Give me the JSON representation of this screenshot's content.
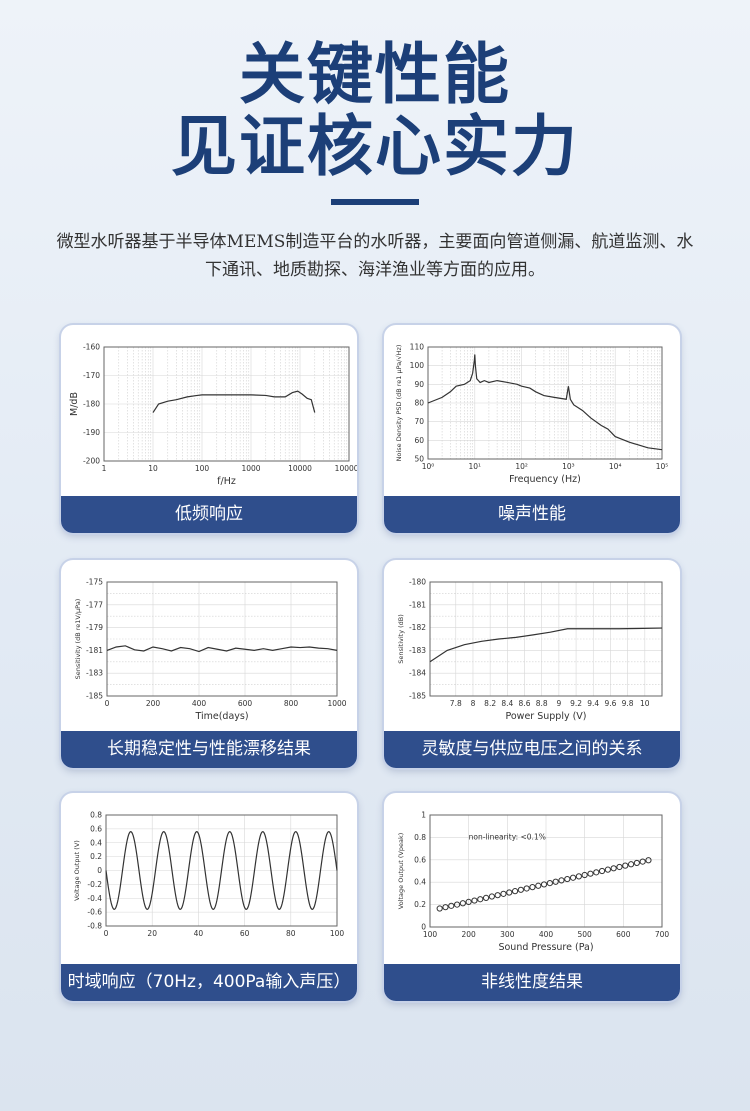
{
  "header": {
    "title_line1": "关键性能",
    "title_line2": "见证核心实力",
    "description": "微型水听器基于半导体MEMS制造平台的水听器，主要面向管道侧漏、航道监测、水下通讯、地质勘探、海洋渔业等方面的应用。"
  },
  "colors": {
    "title": "#1c3f78",
    "label_bg": "#2f4e8c",
    "curve": "#333333"
  },
  "cards": {
    "c1": {
      "label": "低频响应"
    },
    "c2": {
      "label": "噪声性能"
    },
    "c3": {
      "label": "长期稳定性与性能漂移结果"
    },
    "c4": {
      "label": "灵敏度与供应电压之间的关系"
    },
    "c5": {
      "label": "时域响应（70Hz，400Pa输入声压）"
    },
    "c6": {
      "label": "非线性度结果"
    }
  },
  "chart_data": [
    {
      "id": "c1",
      "type": "line",
      "xscale": "log",
      "xlabel": "f/Hz",
      "ylabel": "M/dB",
      "xlim": [
        1,
        100000
      ],
      "ylim": [
        -200,
        -160
      ],
      "xticks": [
        1,
        10,
        100,
        1000,
        10000,
        100000
      ],
      "xtick_labels": [
        "1",
        "10",
        "100",
        "1000",
        "10000",
        "100000"
      ],
      "yticks": [
        -160,
        -170,
        -180,
        -190,
        -200
      ],
      "grid": true,
      "series": [
        {
          "x": [
            10,
            13,
            20,
            30,
            50,
            80,
            100,
            200,
            500,
            1000,
            2000,
            3000,
            5000,
            7000,
            9000,
            11000,
            14000,
            17000,
            20000
          ],
          "y": [
            -183,
            -180,
            -179,
            -178.5,
            -177.5,
            -177,
            -176.8,
            -176.8,
            -176.8,
            -176.8,
            -177,
            -177.5,
            -177.5,
            -176,
            -175.5,
            -176.5,
            -178,
            -178.5,
            -183
          ]
        }
      ]
    },
    {
      "id": "c2",
      "type": "line",
      "xscale": "log",
      "xlabel": "Frequency (Hz)",
      "ylabel": "Noise Density PSD (dB re1 μPa/√Hz)",
      "xlim": [
        1,
        100000
      ],
      "ylim": [
        50,
        110
      ],
      "xticks": [
        1,
        10,
        100,
        1000,
        10000,
        100000
      ],
      "xtick_labels": [
        "10⁰",
        "10¹",
        "10²",
        "10³",
        "10⁴",
        "10⁵"
      ],
      "yticks": [
        110,
        100,
        90,
        80,
        70,
        60,
        50
      ],
      "grid": true,
      "series": [
        {
          "x": [
            1,
            2,
            3,
            4,
            6,
            8,
            9,
            9.8,
            10,
            10.3,
            11,
            13,
            16,
            20,
            30,
            50,
            80,
            100,
            150,
            200,
            300,
            500,
            900,
            1000,
            1100,
            1300,
            2000,
            3000,
            5000,
            7000,
            10000,
            20000,
            50000,
            100000
          ],
          "y": [
            80,
            83,
            86,
            89,
            90,
            92,
            96,
            103,
            106,
            100,
            93,
            91,
            92,
            91,
            92,
            91,
            90,
            89,
            88,
            86,
            84,
            83,
            82,
            89,
            82,
            79,
            76,
            72,
            68,
            66,
            62,
            59,
            56,
            55
          ]
        }
      ]
    },
    {
      "id": "c3",
      "type": "line",
      "xlabel": "Time(days)",
      "ylabel": "Sensitivity (dB re1V/μPa)",
      "xlim": [
        0,
        1000
      ],
      "ylim": [
        -185,
        -175
      ],
      "xticks": [
        0,
        200,
        400,
        600,
        800,
        1000
      ],
      "yticks": [
        -175,
        -177,
        -179,
        -181,
        -183,
        -185
      ],
      "grid": true,
      "series": [
        {
          "x": [
            0,
            40,
            80,
            120,
            160,
            200,
            240,
            280,
            320,
            360,
            400,
            440,
            480,
            520,
            560,
            600,
            640,
            680,
            720,
            760,
            800,
            840,
            880,
            920,
            960,
            1000
          ],
          "y": [
            -181,
            -180.7,
            -180.6,
            -180.95,
            -181.05,
            -180.7,
            -180.85,
            -181.05,
            -180.75,
            -180.85,
            -181.1,
            -180.75,
            -180.9,
            -181.05,
            -180.8,
            -180.9,
            -181,
            -180.85,
            -181,
            -180.85,
            -180.7,
            -180.75,
            -180.7,
            -180.8,
            -180.85,
            -181
          ]
        }
      ]
    },
    {
      "id": "c4",
      "type": "line",
      "xlabel": "Power Supply (V)",
      "ylabel": "Sensitivity (dB)",
      "xlim": [
        7.5,
        10.2
      ],
      "ylim": [
        -185,
        -180
      ],
      "xticks": [
        7.8,
        8,
        8.2,
        8.4,
        8.6,
        8.8,
        9,
        9.2,
        9.4,
        9.6,
        9.8,
        10
      ],
      "yticks": [
        -180,
        -181,
        -182,
        -183,
        -184,
        -185
      ],
      "grid": true,
      "series": [
        {
          "x": [
            7.5,
            7.7,
            7.9,
            8.1,
            8.3,
            8.5,
            8.7,
            8.9,
            9.1,
            9.3,
            9.5,
            9.7,
            9.9,
            10.2
          ],
          "y": [
            -183.5,
            -183.0,
            -182.75,
            -182.6,
            -182.5,
            -182.43,
            -182.32,
            -182.2,
            -182.05,
            -182.05,
            -182.05,
            -182.05,
            -182.04,
            -182.02
          ]
        }
      ]
    },
    {
      "id": "c5",
      "type": "line",
      "xlabel": "",
      "ylabel": "Voltage Output (V)",
      "xlim": [
        0,
        100
      ],
      "ylim": [
        -0.8,
        0.8
      ],
      "xticks": [
        0,
        20,
        40,
        60,
        80,
        100
      ],
      "yticks": [
        0.8,
        0.6,
        0.4,
        0.2,
        0,
        -0.2,
        -0.4,
        -0.6,
        -0.8
      ],
      "ytick_labels": [
        "0.8",
        "0.6",
        "0.4",
        "0.2",
        "0",
        "-0.2",
        "-0.4",
        "-0.6",
        "-0.8"
      ],
      "grid": true,
      "series": [
        {
          "function": "sine",
          "amplitude": 0.56,
          "frequency_hz": 70,
          "unit_x": "ms",
          "x_start": 0,
          "x_end": 100
        }
      ]
    },
    {
      "id": "c6",
      "type": "scatter",
      "xlabel": "Sound Pressure (Pa)",
      "ylabel": "Voltage Output (Vpeak)",
      "xlim": [
        100,
        700
      ],
      "ylim": [
        0,
        1
      ],
      "xticks": [
        100,
        200,
        300,
        400,
        500,
        600,
        700
      ],
      "yticks": [
        0,
        0.2,
        0.4,
        0.6,
        0.8,
        1
      ],
      "ytick_labels": [
        "0",
        "0.2",
        "0.4",
        "0.6",
        "0.8",
        "1"
      ],
      "annotation": "non-linearity: <0.1%",
      "grid": true,
      "series": [
        {
          "x": [
            125,
            140,
            155,
            170,
            185,
            200,
            215,
            230,
            245,
            260,
            275,
            290,
            305,
            320,
            335,
            350,
            365,
            380,
            395,
            410,
            425,
            440,
            455,
            470,
            485,
            500,
            515,
            530,
            545,
            560,
            575,
            590,
            605,
            620,
            635,
            650,
            665
          ],
          "y": [
            0.165,
            0.177,
            0.189,
            0.2,
            0.212,
            0.224,
            0.236,
            0.248,
            0.26,
            0.272,
            0.284,
            0.296,
            0.308,
            0.32,
            0.332,
            0.344,
            0.356,
            0.368,
            0.38,
            0.392,
            0.404,
            0.416,
            0.428,
            0.44,
            0.452,
            0.464,
            0.476,
            0.488,
            0.5,
            0.512,
            0.524,
            0.536,
            0.548,
            0.56,
            0.572,
            0.584,
            0.596
          ]
        }
      ]
    }
  ]
}
